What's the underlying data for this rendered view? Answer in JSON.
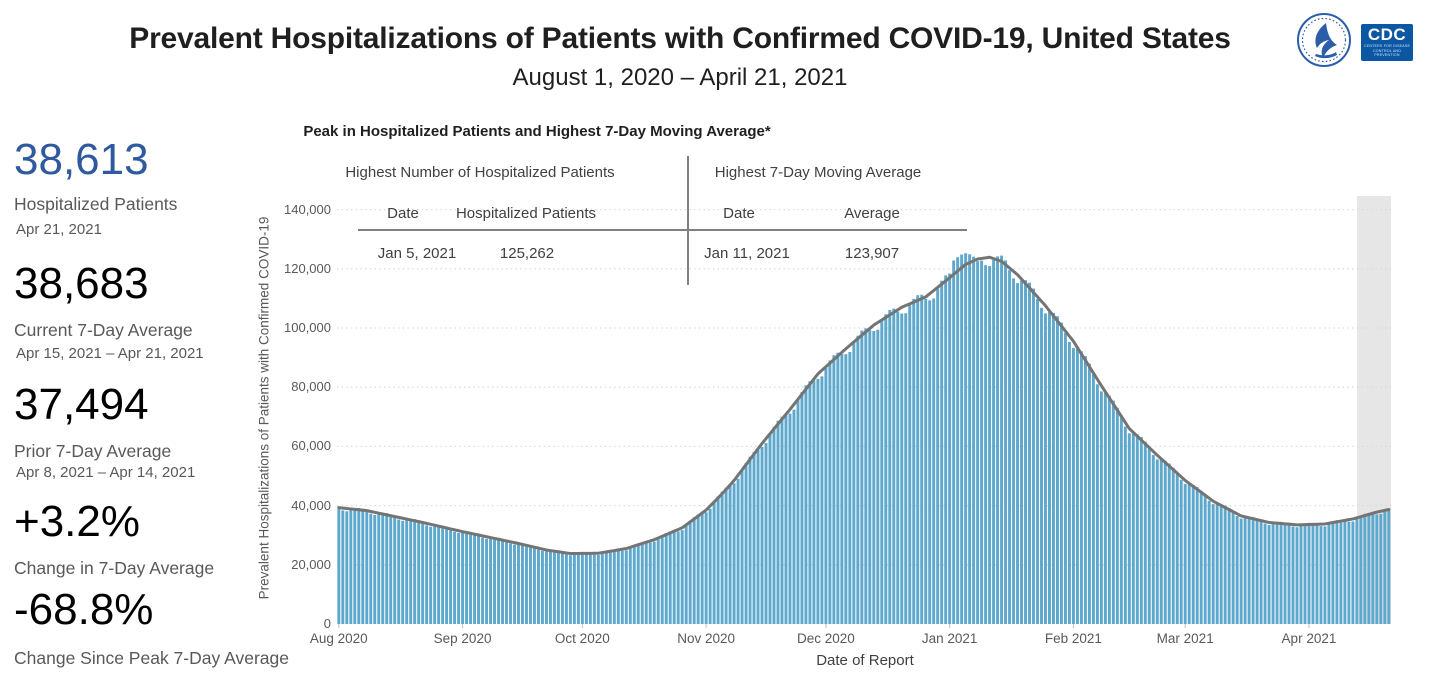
{
  "header": {
    "title": "Prevalent Hospitalizations of Patients with Confirmed COVID-19, United States",
    "subtitle": "August 1, 2020 – April 21, 2021",
    "logos": {
      "cdc_text": "CDC",
      "cdc_sub1": "CENTERS FOR DISEASE",
      "cdc_sub2": "CONTROL AND PREVENTION"
    }
  },
  "stats": [
    {
      "value": "38,613",
      "label": "Hospitalized Patients",
      "date": "Apr 21, 2021"
    },
    {
      "value": "38,683",
      "label": "Current 7-Day Average",
      "date": "Apr 15, 2021 – Apr 21, 2021"
    },
    {
      "value": "37,494",
      "label": "Prior 7-Day Average",
      "date": "Apr 8, 2021 – Apr 14, 2021"
    },
    {
      "value": "+3.2%",
      "label": "Change in 7-Day Average",
      "date": ""
    },
    {
      "value": "-68.8%",
      "label": "Change Since Peak 7-Day Average",
      "date": ""
    }
  ],
  "peak_table": {
    "title": "Peak in Hospitalized Patients and Highest 7-Day Moving Average*",
    "left": {
      "header": "Highest Number of Hospitalized Patients",
      "col1": "Date",
      "col2": "Hospitalized Patients",
      "date": "Jan 5, 2021",
      "value": "125,262"
    },
    "right": {
      "header": "Highest 7-Day Moving Average",
      "col1": "Date",
      "col2": "Average",
      "date": "Jan 11, 2021",
      "value": "123,907"
    }
  },
  "chart_data": {
    "type": "bar",
    "title": "Prevalent Hospitalizations of Patients with Confirmed COVID-19, United States",
    "xlabel": "Date of Report",
    "ylabel": "Prevalent Hospitalizations of Patients with Confirmed COVID-19",
    "ylim": [
      0,
      140000
    ],
    "ytick_values": [
      0,
      20000,
      40000,
      60000,
      80000,
      100000,
      120000,
      140000
    ],
    "ytick_labels": [
      "0",
      "20,000",
      "40,000",
      "60,000",
      "80,000",
      "100,000",
      "120,000",
      "140,000"
    ],
    "grid": "dotted horizontal",
    "start_date": "2020-08-01",
    "end_date": "2021-04-21",
    "days": 264,
    "xticks": [
      {
        "day": 0,
        "label": "Aug 2020"
      },
      {
        "day": 31,
        "label": "Sep 2020"
      },
      {
        "day": 61,
        "label": "Oct 2020"
      },
      {
        "day": 92,
        "label": "Nov 2020"
      },
      {
        "day": 122,
        "label": "Dec 2020"
      },
      {
        "day": 153,
        "label": "Jan 2021"
      },
      {
        "day": 184,
        "label": "Feb 2021"
      },
      {
        "day": 212,
        "label": "Mar 2021"
      },
      {
        "day": 243,
        "label": "Apr 2021"
      }
    ],
    "anchors_note": "day index from Aug 1 2020; values estimated from gridlines except labeled exact points",
    "anchors": [
      [
        0,
        39300
      ],
      [
        7,
        38300
      ],
      [
        14,
        36300
      ],
      [
        21,
        34300
      ],
      [
        31,
        31200
      ],
      [
        38,
        29200
      ],
      [
        45,
        27200
      ],
      [
        52,
        25000
      ],
      [
        58,
        23800
      ],
      [
        65,
        23900
      ],
      [
        72,
        25500
      ],
      [
        79,
        28500
      ],
      [
        86,
        32500
      ],
      [
        92,
        38500
      ],
      [
        96,
        44000
      ],
      [
        99,
        48500
      ],
      [
        106,
        61000
      ],
      [
        113,
        72500
      ],
      [
        120,
        84500
      ],
      [
        127,
        93000
      ],
      [
        134,
        101000
      ],
      [
        141,
        107000
      ],
      [
        147,
        110500
      ],
      [
        153,
        117000
      ],
      [
        157,
        121500
      ],
      [
        160,
        123300
      ],
      [
        163,
        123907
      ],
      [
        166,
        122500
      ],
      [
        170,
        118000
      ],
      [
        177,
        107500
      ],
      [
        184,
        95500
      ],
      [
        191,
        80500
      ],
      [
        198,
        66000
      ],
      [
        205,
        57000
      ],
      [
        212,
        48500
      ],
      [
        219,
        41500
      ],
      [
        226,
        36500
      ],
      [
        233,
        34300
      ],
      [
        240,
        33500
      ],
      [
        247,
        33800
      ],
      [
        254,
        35500
      ],
      [
        260,
        37800
      ],
      [
        263,
        38683
      ]
    ],
    "series": [
      {
        "name": "Hospitalized Patients (daily)",
        "type": "bar",
        "bar_overrides": {
          "154": 122800,
          "155": 123900,
          "156": 124800,
          "157": 125262,
          "158": 124900,
          "159": 124100,
          "160": 122600,
          "263": 38613
        },
        "weekly_modulation": [
          -0.006,
          -0.02,
          -0.024,
          -0.004,
          0.01,
          0.016,
          0.012
        ]
      },
      {
        "name": "7-Day Moving Average",
        "type": "line"
      }
    ],
    "annotations": {
      "peak_bar": {
        "date": "Jan 5, 2021",
        "value": 125262
      },
      "peak_avg": {
        "date": "Jan 11, 2021",
        "value": 123907
      },
      "latest_bar": {
        "date": "Apr 21, 2021",
        "value": 38613
      },
      "current_avg": {
        "period": "Apr 15, 2021 – Apr 21, 2021",
        "value": 38683
      }
    },
    "recent_data_band_days": [
      255.5,
      264
    ],
    "colors": {
      "bar": "#5fa8cd",
      "line": "#747474",
      "band": "#e6e6e6",
      "grid": "#d9d9d9",
      "accent_blue": "#2f5a9e",
      "text_gray": "#595959",
      "rule_gray": "#7f7f7f",
      "cdc_blue": "#0b57a4"
    }
  }
}
